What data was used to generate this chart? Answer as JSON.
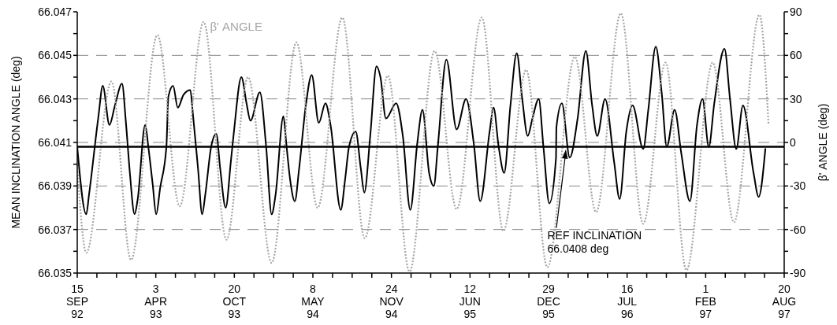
{
  "chart_data": {
    "type": "line",
    "ylabel": "MEAN INCLINATION ANGLE (deg)",
    "y2label": "β' ANGLE (deg)",
    "xlim": [
      "1992-09-15",
      "1997-08-20"
    ],
    "xticks": [
      {
        "value": "1992-09-15",
        "label": "15\nSEP\n92"
      },
      {
        "value": "1992-11-04",
        "label": null
      },
      {
        "value": "1992-12-24",
        "label": null
      },
      {
        "value": "1993-02-12",
        "label": null
      },
      {
        "value": "1993-04-03",
        "label": "3\nAPR\n93"
      },
      {
        "value": "1993-05-23",
        "label": null
      },
      {
        "value": "1993-07-12",
        "label": null
      },
      {
        "value": "1993-08-31",
        "label": null
      },
      {
        "value": "1993-10-20",
        "label": "20\nOCT\n93"
      },
      {
        "value": "1993-12-09",
        "label": null
      },
      {
        "value": "1994-01-28",
        "label": null
      },
      {
        "value": "1994-03-19",
        "label": null
      },
      {
        "value": "1994-05-08",
        "label": "8\nMAY\n94"
      },
      {
        "value": "1994-06-27",
        "label": null
      },
      {
        "value": "1994-08-16",
        "label": null
      },
      {
        "value": "1994-10-05",
        "label": null
      },
      {
        "value": "1994-11-24",
        "label": "24\nNOV\n94"
      },
      {
        "value": "1995-01-13",
        "label": null
      },
      {
        "value": "1995-03-04",
        "label": null
      },
      {
        "value": "1995-04-23",
        "label": null
      },
      {
        "value": "1995-06-12",
        "label": "12\nJUN\n95"
      },
      {
        "value": "1995-08-01",
        "label": null
      },
      {
        "value": "1995-09-20",
        "label": null
      },
      {
        "value": "1995-11-09",
        "label": null
      },
      {
        "value": "1995-12-29",
        "label": "29\nDEC\n95"
      },
      {
        "value": "1996-02-17",
        "label": null
      },
      {
        "value": "1996-04-07",
        "label": null
      },
      {
        "value": "1996-05-27",
        "label": null
      },
      {
        "value": "1996-07-16",
        "label": "16\nJUL\n96"
      },
      {
        "value": "1996-09-04",
        "label": null
      },
      {
        "value": "1996-10-24",
        "label": null
      },
      {
        "value": "1996-12-13",
        "label": null
      },
      {
        "value": "1997-02-01",
        "label": "1\nFEB\n97"
      },
      {
        "value": "1997-03-23",
        "label": null
      },
      {
        "value": "1997-05-12",
        "label": null
      },
      {
        "value": "1997-07-01",
        "label": null
      },
      {
        "value": "1997-08-20",
        "label": "20\nAUG\n97"
      }
    ],
    "ylim": [
      66.035,
      66.047
    ],
    "yticks": [
      66.035,
      {
        "value": 66.036,
        "label": null
      },
      66.037,
      {
        "value": 66.038,
        "label": null
      },
      66.039,
      {
        "value": 66.04,
        "label": null
      },
      66.041,
      {
        "value": 66.042,
        "label": null
      },
      66.043,
      {
        "value": 66.044,
        "label": null
      },
      66.045,
      {
        "value": 66.046,
        "label": null
      },
      66.047
    ],
    "y2lim": [
      -90,
      90
    ],
    "y2ticks": [
      -90,
      {
        "value": -75,
        "label": null
      },
      -60,
      {
        "value": -45,
        "label": null
      },
      -30,
      {
        "value": -15,
        "label": null
      },
      0,
      {
        "value": 15,
        "label": null
      },
      30,
      {
        "value": 45,
        "label": null
      },
      60,
      {
        "value": 75,
        "label": null
      },
      90
    ],
    "grid": "y",
    "marker": "none",
    "ref_lines": [
      {
        "axis": "y",
        "value": 66.0408,
        "label": "REF INCLINATION\n66.0408 deg",
        "color": "#000000"
      }
    ],
    "series": [
      {
        "color": "#000000",
        "line_style": "solid",
        "x": [
          "1992-09-15",
          "1992-10-08",
          "1992-10-15",
          "1992-11-08",
          "1992-11-19",
          "1992-12-06",
          "1992-12-20",
          "1993-01-07",
          "1993-01-17",
          "1993-01-27",
          "1993-02-08",
          "1993-02-16",
          "1993-03-07",
          "1993-03-15",
          "1993-03-26",
          "1993-04-04",
          "1993-04-14",
          "1993-04-30",
          "1993-05-05",
          "1993-05-17",
          "1993-05-29",
          "1993-06-13",
          "1993-06-30",
          "1993-07-06",
          "1993-07-20",
          "1993-07-30",
          "1993-08-07",
          "1993-08-22",
          "1993-09-04",
          "1993-09-14",
          "1993-09-28",
          "1993-10-11",
          "1993-10-19",
          "1993-11-07",
          "1993-11-20",
          "1993-11-30",
          "1993-12-24",
          "1994-01-09",
          "1994-01-23",
          "1994-02-02",
          "1994-02-22",
          "1994-03-01",
          "1994-03-11",
          "1994-03-23",
          "1994-04-03",
          "1994-04-20",
          "1994-05-05",
          "1994-05-23",
          "1994-06-09",
          "1994-06-22",
          "1994-07-18",
          "1994-07-29",
          "1994-08-08",
          "1994-08-25",
          "1994-09-07",
          "1994-09-16",
          "1994-10-01",
          "1994-10-17",
          "1994-10-27",
          "1994-11-10",
          "1994-12-06",
          "1994-12-23",
          "1995-01-11",
          "1995-01-29",
          "1995-02-11",
          "1995-02-28",
          "1995-03-12",
          "1995-03-22",
          "1995-04-13",
          "1995-05-09",
          "1995-06-02",
          "1995-06-22",
          "1995-07-08",
          "1995-08-01",
          "1995-08-11",
          "1995-08-24",
          "1995-09-07",
          "1995-09-23",
          "1995-10-09",
          "1995-10-23",
          "1995-11-06",
          "1995-11-18",
          "1995-12-04",
          "1995-12-16",
          "1995-12-31",
          "1996-01-17",
          "1996-01-18",
          "1996-02-01",
          "1996-02-21",
          "1996-03-12",
          "1996-04-02",
          "1996-04-18",
          "1996-05-01",
          "1996-05-21",
          "1996-06-13",
          "1996-06-27",
          "1996-07-14",
          "1996-07-30",
          "1996-08-26",
          "1996-09-08",
          "1996-09-27",
          "1996-10-12",
          "1996-10-25",
          "1996-11-14",
          "1996-12-01",
          "1996-12-23",
          "1997-01-10",
          "1997-01-24",
          "1997-02-09",
          "1997-02-23",
          "1997-03-21",
          "1997-04-04",
          "1997-04-20",
          "1997-05-07",
          "1997-06-03",
          "1997-06-16",
          "1997-07-03"
        ],
        "values": [
          66.0408,
          66.0377,
          66.0386,
          66.0422,
          66.0436,
          66.0418,
          66.0427,
          66.0437,
          66.0419,
          66.0396,
          66.0377,
          66.0384,
          66.0418,
          66.0408,
          66.0391,
          66.0377,
          66.0389,
          66.0408,
          66.0431,
          66.0436,
          66.0426,
          66.0432,
          66.0434,
          66.0424,
          66.0397,
          66.0377,
          66.0386,
          66.0408,
          66.0414,
          66.0398,
          66.038,
          66.0401,
          66.0415,
          66.044,
          66.0428,
          66.042,
          66.0433,
          66.0408,
          66.0377,
          66.0386,
          66.0422,
          66.041,
          66.0393,
          66.0383,
          66.0398,
          66.0427,
          66.0441,
          66.0419,
          66.0428,
          66.0418,
          66.0379,
          66.0393,
          66.0408,
          66.0415,
          66.0398,
          66.0387,
          66.0413,
          66.0445,
          66.044,
          66.0421,
          66.0428,
          66.0413,
          66.0379,
          66.041,
          66.0425,
          66.0396,
          66.039,
          66.0408,
          66.0448,
          66.0416,
          66.043,
          66.0409,
          66.0383,
          66.0415,
          66.0426,
          66.0408,
          66.0396,
          66.0427,
          66.0451,
          66.043,
          66.0413,
          66.0421,
          66.043,
          66.0408,
          66.0382,
          66.0403,
          66.0417,
          66.0428,
          66.0403,
          66.0421,
          66.0452,
          66.0427,
          66.0413,
          66.043,
          66.0401,
          66.0384,
          66.0415,
          66.0427,
          66.0407,
          66.0425,
          66.0454,
          66.0433,
          66.0408,
          66.0425,
          66.0405,
          66.0383,
          66.0418,
          66.043,
          66.0408,
          66.0428,
          66.0453,
          66.043,
          66.0407,
          66.0427,
          66.0396,
          66.0385,
          66.0407
        ]
      },
      {
        "name": "β' ANGLE",
        "color": "#a6a6a6",
        "line_style": "dotted",
        "axis": "y2",
        "x": [
          "1992-09-16",
          "1992-10-08",
          "1992-12-11",
          "1993-01-30",
          "1993-04-07",
          "1993-06-03",
          "1993-08-03",
          "1993-09-30",
          "1993-11-24",
          "1994-01-23",
          "1994-03-27",
          "1994-05-20",
          "1994-07-22",
          "1994-09-17",
          "1994-11-15",
          "1995-01-09",
          "1995-03-14",
          "1995-05-09",
          "1995-07-12",
          "1995-09-05",
          "1995-11-02",
          "1995-12-26",
          "1996-03-05",
          "1996-04-28",
          "1996-06-30",
          "1996-08-26",
          "1996-10-22",
          "1996-12-14",
          "1997-02-19",
          "1997-04-14",
          "1997-06-18",
          "1997-07-11"
        ],
        "values": [
          -20,
          -76,
          42,
          -81,
          74,
          -44,
          83,
          -67,
          45,
          -83,
          69,
          -45,
          86,
          -66,
          46,
          -89,
          63,
          -46,
          86,
          -61,
          50,
          -86,
          59,
          -48,
          89,
          -56,
          55,
          -88,
          55,
          -55,
          88,
          13
        ]
      }
    ]
  }
}
